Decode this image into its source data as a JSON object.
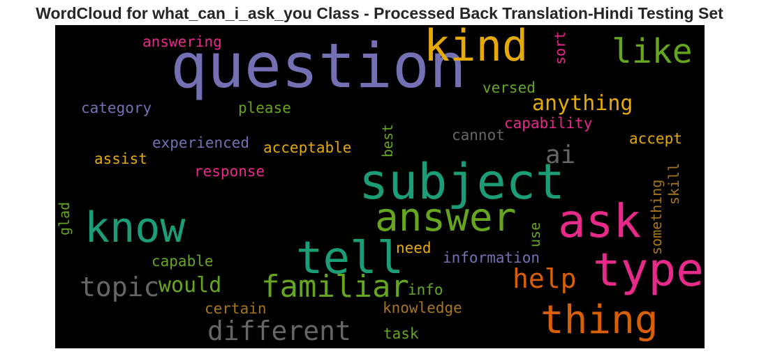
{
  "chart_data": {
    "type": "wordcloud",
    "title": "WordCloud for what_can_i_ask_you Class - Processed Back Translation-Hindi Testing Set",
    "background": "#000000",
    "colormap": "Dark2",
    "words": [
      {
        "text": "question",
        "color": "#7570b3"
      },
      {
        "text": "subject",
        "color": "#1b9e77"
      },
      {
        "text": "kind",
        "color": "#e6ab02"
      },
      {
        "text": "ask",
        "color": "#e7298a"
      },
      {
        "text": "type",
        "color": "#e7298a"
      },
      {
        "text": "tell",
        "color": "#1b9e77"
      },
      {
        "text": "know",
        "color": "#1b9e77"
      },
      {
        "text": "answer",
        "color": "#66a61e"
      },
      {
        "text": "thing",
        "color": "#d95f02"
      },
      {
        "text": "like",
        "color": "#66a61e"
      },
      {
        "text": "familiar",
        "color": "#66a61e"
      },
      {
        "text": "different",
        "color": "#666666"
      },
      {
        "text": "topic",
        "color": "#666666"
      },
      {
        "text": "help",
        "color": "#d95f02"
      },
      {
        "text": "ai",
        "color": "#666666"
      },
      {
        "text": "anything",
        "color": "#e6ab02"
      },
      {
        "text": "would",
        "color": "#66a61e"
      },
      {
        "text": "answering",
        "color": "#e7298a"
      },
      {
        "text": "sort",
        "color": "#e7298a"
      },
      {
        "text": "versed",
        "color": "#66a61e"
      },
      {
        "text": "category",
        "color": "#7570b3"
      },
      {
        "text": "please",
        "color": "#66a61e"
      },
      {
        "text": "capability",
        "color": "#e7298a"
      },
      {
        "text": "cannot",
        "color": "#666666"
      },
      {
        "text": "accept",
        "color": "#e6ab02"
      },
      {
        "text": "experienced",
        "color": "#7570b3"
      },
      {
        "text": "acceptable",
        "color": "#e6ab02"
      },
      {
        "text": "best",
        "color": "#66a61e"
      },
      {
        "text": "assist",
        "color": "#e6ab02"
      },
      {
        "text": "response",
        "color": "#e7298a"
      },
      {
        "text": "skill",
        "color": "#a6761d"
      },
      {
        "text": "something",
        "color": "#a6761d"
      },
      {
        "text": "glad",
        "color": "#66a61e"
      },
      {
        "text": "use",
        "color": "#66a61e"
      },
      {
        "text": "need",
        "color": "#e6ab02"
      },
      {
        "text": "information",
        "color": "#7570b3"
      },
      {
        "text": "capable",
        "color": "#66a61e"
      },
      {
        "text": "info",
        "color": "#66a61e"
      },
      {
        "text": "certain",
        "color": "#a6761d"
      },
      {
        "text": "knowledge",
        "color": "#a6761d"
      },
      {
        "text": "task",
        "color": "#66a61e"
      }
    ]
  }
}
